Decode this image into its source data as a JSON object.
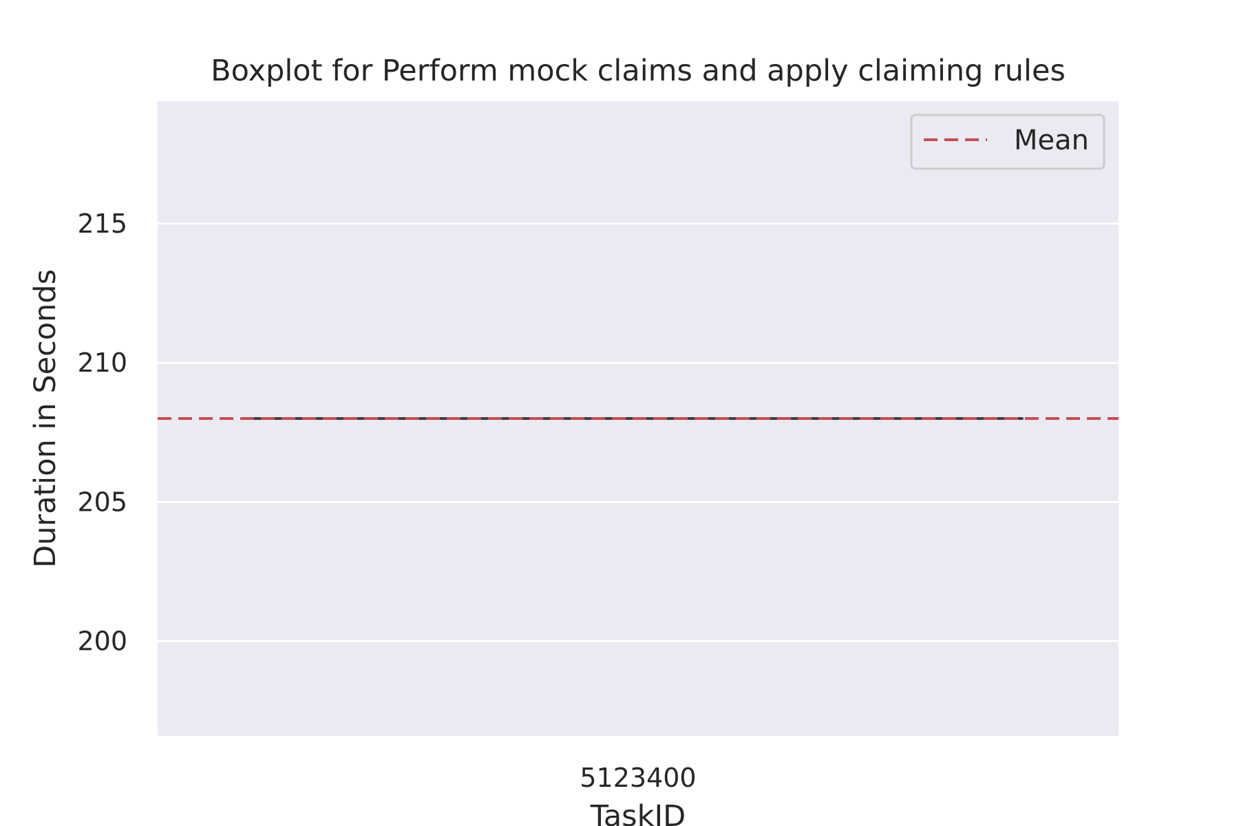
{
  "chart_data": {
    "type": "box",
    "title": "Boxplot for Perform mock claims and apply claiming rules",
    "xlabel": "TaskID",
    "ylabel": "Duration in Seconds",
    "categories": [
      "5123400"
    ],
    "boxes": [
      {
        "category": "5123400",
        "min": 208,
        "q1": 208,
        "median": 208,
        "q3": 208,
        "max": 208
      }
    ],
    "mean": 208,
    "ylim": [
      196.6,
      219.4
    ],
    "yticks": [
      200,
      205,
      210,
      215
    ],
    "grid": true,
    "legend": {
      "position": "top-right",
      "entries": [
        "Mean"
      ]
    },
    "colors": {
      "background": "#eaeaf2",
      "grid": "#ffffff",
      "mean_line": "#c44e52",
      "box_line": "#3f3f3f",
      "legend_border": "#cccccc",
      "text": "#262626"
    }
  }
}
